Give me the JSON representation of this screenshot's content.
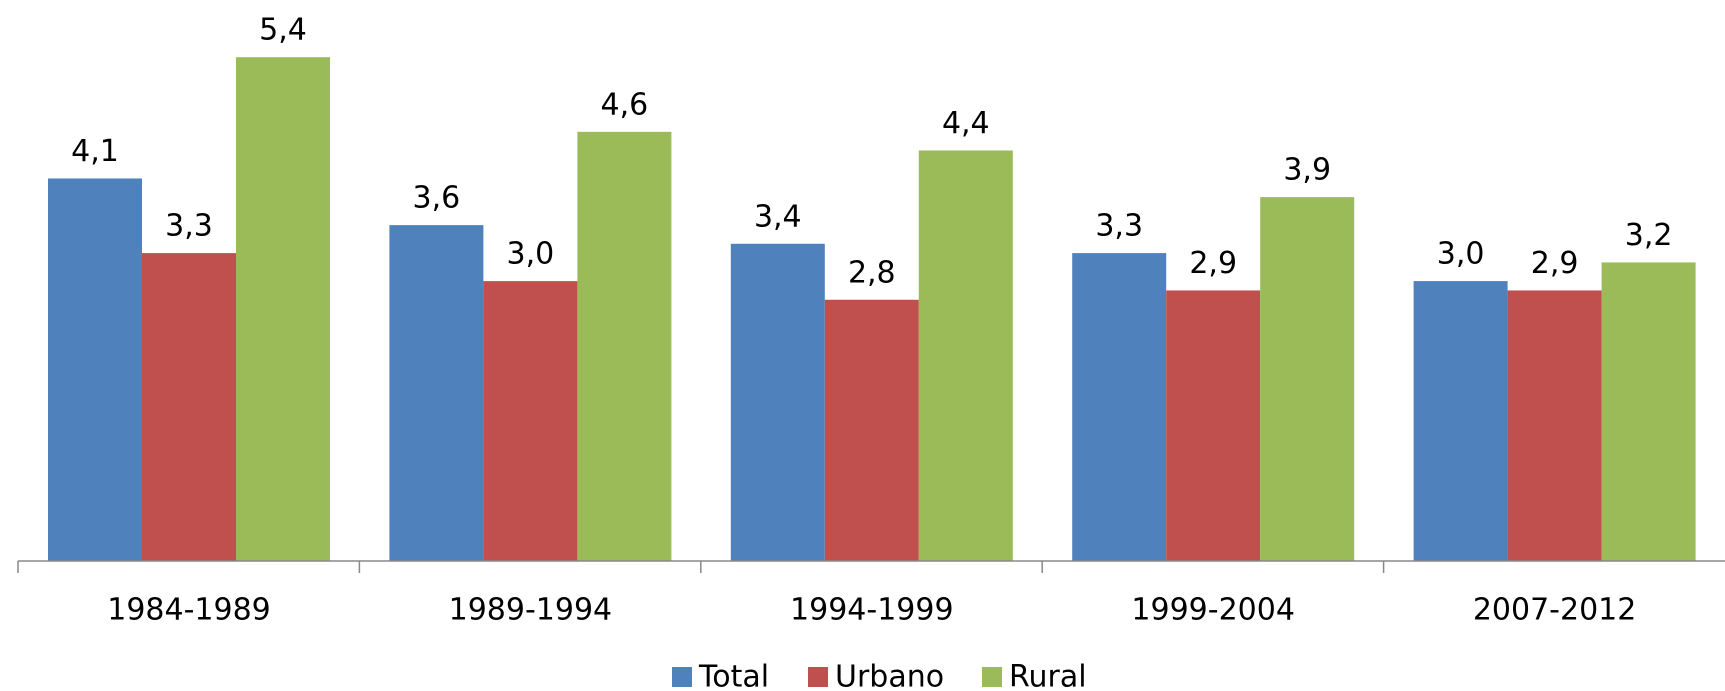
{
  "chart_data": {
    "type": "bar",
    "categories": [
      "1984-1989",
      "1989-1994",
      "1994-1999",
      "1999-2004",
      "2007-2012"
    ],
    "series": [
      {
        "name": "Total",
        "color": "#4f81bd",
        "values": [
          4.1,
          3.6,
          3.4,
          3.3,
          3.0
        ],
        "value_labels": [
          "4,1",
          "3,6",
          "3,4",
          "3,3",
          "3,0"
        ]
      },
      {
        "name": "Urbano",
        "color": "#c0504d",
        "values": [
          3.3,
          3.0,
          2.8,
          2.9,
          2.9
        ],
        "value_labels": [
          "3,3",
          "3,0",
          "2,8",
          "2,9",
          "2,9"
        ]
      },
      {
        "name": "Rural",
        "color": "#9bbb59",
        "values": [
          5.4,
          4.6,
          4.4,
          3.9,
          3.2
        ],
        "value_labels": [
          "5,4",
          "4,6",
          "4,4",
          "3,9",
          "3,2"
        ]
      }
    ]
  }
}
